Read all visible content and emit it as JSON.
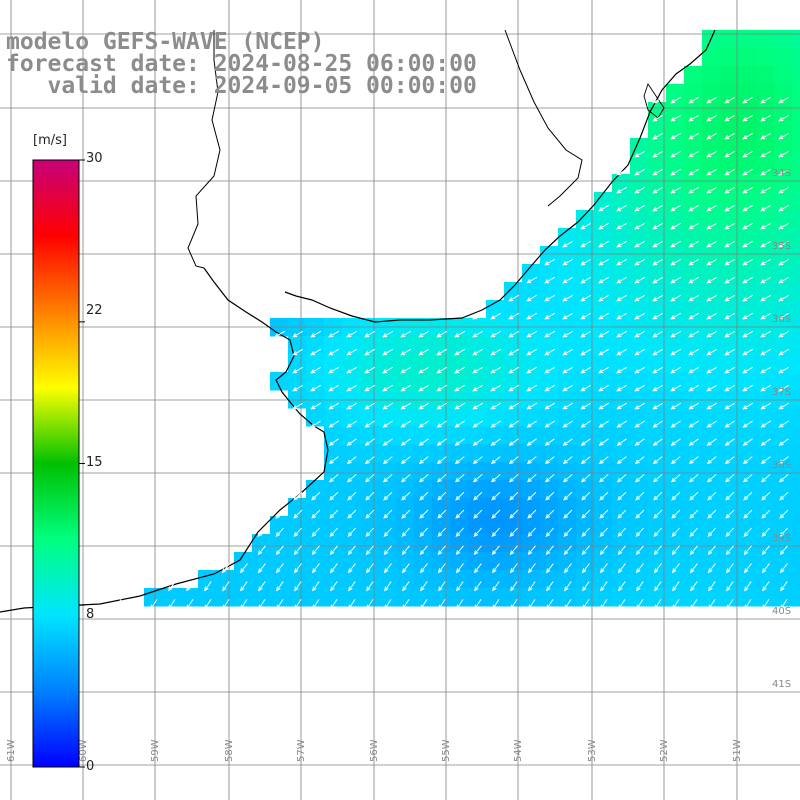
{
  "header": {
    "line1": "modelo GEFS-WAVE (NCEP)",
    "line2": "forecast date: 2024-08-25 06:00:00",
    "line3": "   valid date: 2024-09-05 00:00:00"
  },
  "colorbar": {
    "unit": "[m/s]",
    "ticks": [
      "30",
      "22",
      "15",
      "8",
      "0"
    ],
    "tick_values": [
      30,
      22,
      15,
      8,
      0
    ],
    "range": [
      0,
      30
    ],
    "colors": [
      "#0000ff",
      "#0080ff",
      "#00e5ff",
      "#00ff80",
      "#00c000",
      "#ffff00",
      "#ff8000",
      "#ff0000",
      "#c8007a"
    ]
  },
  "map": {
    "lat_labels": [
      "33S",
      "34S",
      "35S",
      "36S",
      "37S",
      "38S",
      "39S",
      "40S",
      "41S"
    ],
    "lon_labels": [
      "61W",
      "60W",
      "59W",
      "58W",
      "57W",
      "56W",
      "55W",
      "54W",
      "53W",
      "52W",
      "51W"
    ],
    "land_color": "#ffffff",
    "grid_color": "#808080",
    "coast_color": "#000000",
    "arrow_color": "#ffffff",
    "wind_direction": "from NE toward SW, rotating to from N toward S in the south"
  }
}
